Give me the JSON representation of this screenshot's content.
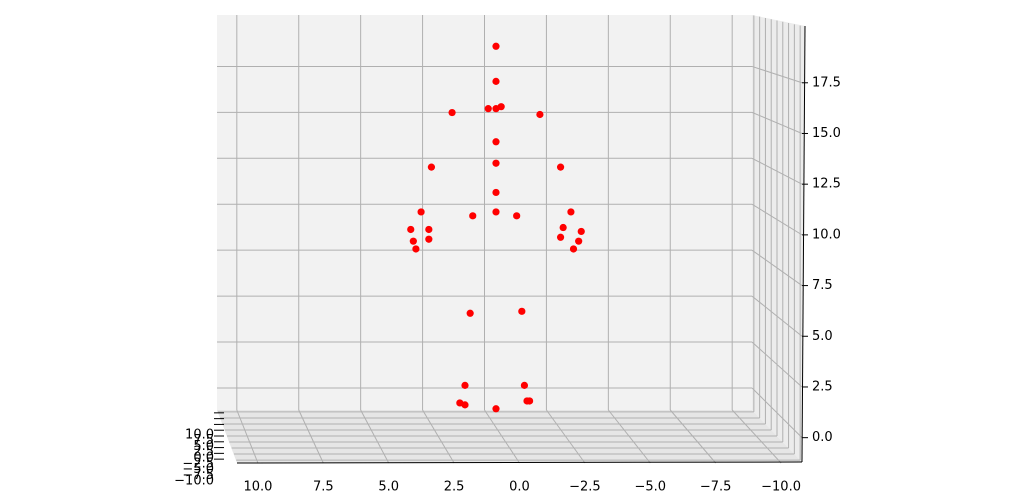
{
  "chart_data": {
    "type": "scatter3d",
    "color": "#ff0000",
    "grid": true,
    "x": [
      0,
      0,
      0.3,
      0,
      -0.2,
      1.7,
      -1.7,
      0,
      0,
      2.5,
      -2.5,
      0,
      2.9,
      0.9,
      0,
      -0.8,
      -2.9,
      3.3,
      2.6,
      -2.6,
      -3.3,
      3.2,
      2.6,
      -2.5,
      -3.2,
      3.1,
      -3.0,
      1.0,
      -1.0,
      1.2,
      -1.1,
      1.4,
      1.2,
      -1.2,
      -1.3,
      0
    ],
    "z": [
      18.9,
      17.1,
      15.7,
      15.7,
      15.8,
      15.5,
      15.4,
      14.0,
      12.9,
      12.7,
      12.7,
      11.4,
      10.4,
      10.2,
      10.4,
      10.2,
      10.4,
      9.5,
      9.5,
      9.6,
      9.4,
      8.9,
      9.0,
      9.1,
      8.9,
      8.5,
      8.5,
      5.2,
      5.3,
      1.5,
      1.5,
      0.6,
      0.5,
      0.7,
      0.7,
      0.3
    ],
    "xlim": [
      10.8,
      -10.8
    ],
    "ylim": [
      -10.8,
      10.8
    ],
    "zlim": [
      -1.2,
      20.3
    ],
    "xticks": [
      {
        "value": 10,
        "label": "10.0"
      },
      {
        "value": 7.5,
        "label": "7.5"
      },
      {
        "value": 5,
        "label": "5.0"
      },
      {
        "value": 2.5,
        "label": "2.5"
      },
      {
        "value": 0,
        "label": "0.0"
      },
      {
        "value": -2.5,
        "label": "−2.5"
      },
      {
        "value": -5,
        "label": "−5.0"
      },
      {
        "value": -7.5,
        "label": "−7.5"
      },
      {
        "value": -10,
        "label": "−10.0"
      }
    ],
    "yticks": [
      {
        "value": -10,
        "label": "−10.0"
      },
      {
        "value": -7.5,
        "label": "−7.5"
      },
      {
        "value": -5,
        "label": "−5.0"
      },
      {
        "value": -2.5,
        "label": "−2.5"
      },
      {
        "value": 0,
        "label": "0.0"
      },
      {
        "value": 2.5,
        "label": "2.5"
      },
      {
        "value": 5,
        "label": "5.0"
      },
      {
        "value": 7.5,
        "label": "7.5"
      },
      {
        "value": 10,
        "label": "10.0"
      }
    ],
    "zticks": [
      {
        "value": 0,
        "label": "0.0"
      },
      {
        "value": 2.5,
        "label": "2.5"
      },
      {
        "value": 5,
        "label": "5.0"
      },
      {
        "value": 7.5,
        "label": "7.5"
      },
      {
        "value": 10,
        "label": "10.0"
      },
      {
        "value": 12.5,
        "label": "12.5"
      },
      {
        "value": 15,
        "label": "15.0"
      },
      {
        "value": 17.5,
        "label": "17.5"
      }
    ]
  }
}
